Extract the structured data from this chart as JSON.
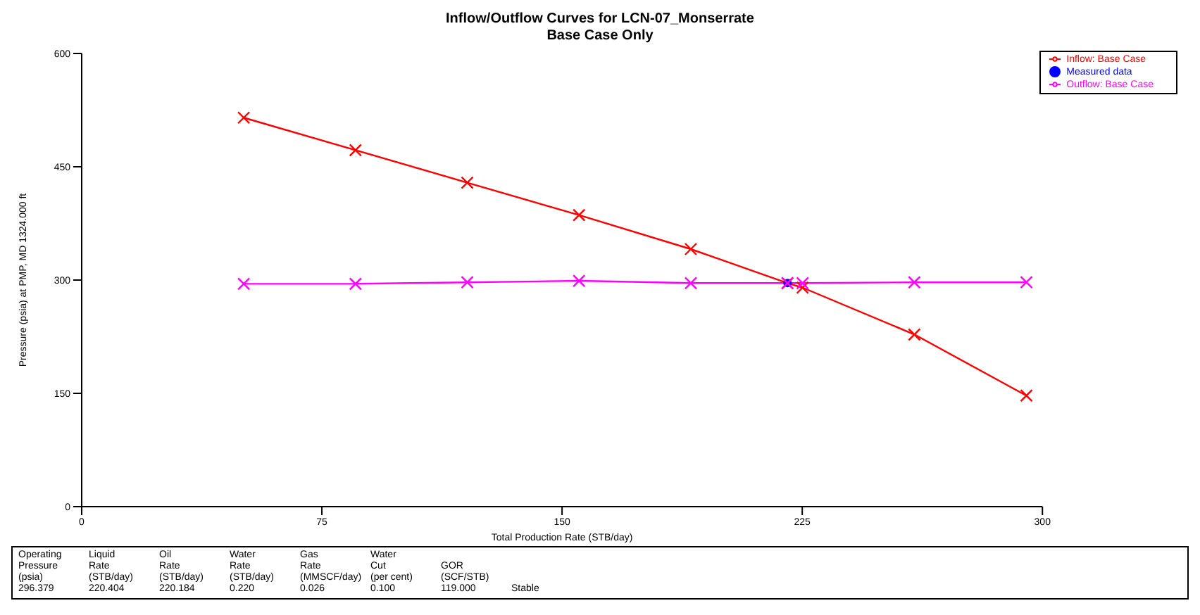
{
  "chart_data": {
    "type": "line",
    "title": "Inflow/Outflow Curves for LCN-07_Monserrate",
    "subtitle": "Base Case Only",
    "xlabel": "Total Production Rate (STB/day)",
    "ylabel": "Pressure (psia) at PMP, MD 1324.000 ft",
    "xlim": [
      0,
      300
    ],
    "xticks": [
      0,
      75,
      150,
      225,
      300
    ],
    "ylim": [
      0,
      600
    ],
    "yticks": [
      0,
      150,
      300,
      450,
      600
    ],
    "grid": false,
    "legend": "top right",
    "marker": "cross",
    "line_style": "solid",
    "series": [
      {
        "name": "Inflow: Base Case",
        "color": "#ff0000",
        "x": [
          50.6,
          85.5,
          120.4,
          155.3,
          190.2,
          220.4,
          225.1,
          260,
          295
        ],
        "values": [
          515,
          472,
          429,
          386,
          341,
          296,
          290,
          228,
          147
        ]
      },
      {
        "name": "Outflow: Base Case",
        "color": "#ff00ff",
        "x": [
          50.6,
          85.5,
          120.4,
          155.3,
          190.2,
          220.4,
          225.1,
          260,
          295
        ],
        "values": [
          295,
          295,
          297,
          299,
          296,
          296,
          296,
          297,
          297
        ]
      },
      {
        "name": "Measured data",
        "type": "scatter",
        "marker": "circle",
        "color": "#0000ff",
        "x": [
          220.4
        ],
        "values": [
          296
        ]
      }
    ],
    "annotations": [
      "Operating\nPressure\n(psia)\n296.379",
      "Liquid\nRate\n(STB/day)\n220.404",
      "Oil\nRate\n(STB/day)\n220.184",
      "Water\nRate\n(STB/day)\n0.220",
      "Gas\nRate\n(MMSCF/day)\n0.026",
      "Water\nCut\n(per cent)\n0.100",
      "GOR\n(SCF/STB)\n119.000",
      "Stable"
    ]
  }
}
